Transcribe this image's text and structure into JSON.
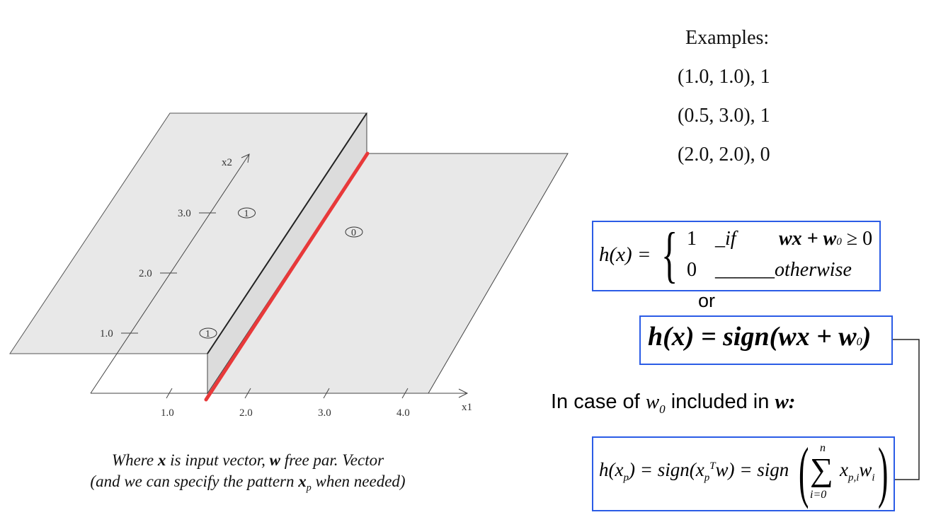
{
  "examples": {
    "title": "Examples:",
    "rows": [
      "(1.0, 1.0),  1",
      "(0.5, 3.0),  1",
      "(2.0, 2.0),  0"
    ]
  },
  "axes": {
    "x1_label": "x1",
    "x2_label": "x2",
    "x1_ticks": [
      "1.0",
      "2.0",
      "3.0",
      "4.0"
    ],
    "x2_ticks": [
      "1.0",
      "2.0",
      "3.0"
    ]
  },
  "points": [
    {
      "x1": 1.0,
      "x2": 1.0,
      "label": "1"
    },
    {
      "x1": 0.5,
      "x2": 3.0,
      "label": "1"
    },
    {
      "x1": 2.0,
      "x2": 2.0,
      "label": "0"
    }
  ],
  "formula1": {
    "lhs": "h(x) =",
    "case1_value": "1",
    "case1_cond_prefix": "_if",
    "case1_cond": "wx + w",
    "case1_sub": "0",
    "case1_tail": " ≥ 0",
    "case2_value": "0",
    "case2_cond": "______otherwise"
  },
  "or_text": "or",
  "formula2": {
    "lhs": "h(x) = sign(wx + w",
    "sub": "0",
    "rhs": ")"
  },
  "in_case": {
    "prefix": "In case of ",
    "var": "w",
    "sub": "0",
    "middle": " included in ",
    "bold_var": "w:"
  },
  "formula3": {
    "lhs": "h(x",
    "lhs_sub": "p",
    "mid": ") = sign(x",
    "mid_sub": "p",
    "mid_sup": "T",
    "mid_tail": "w) = sign",
    "sum_top": "n",
    "sum_bottom": "i=0",
    "term": "x",
    "term_sub": "p,i",
    "term2": "w",
    "term2_sub": "i"
  },
  "caption": {
    "line1_a": "Where ",
    "line1_x": "x",
    "line1_b": " is input vector, ",
    "line1_w": "w",
    "line1_c": " free par. Vector",
    "line2_a": "(and we can specify the pattern ",
    "line2_x": "x",
    "line2_sub": "p",
    "line2_b": "  when needed)"
  },
  "colors": {
    "boundary": "#e8393a",
    "box_border": "#2b5ce6",
    "plane_fill": "#e8e8e8"
  }
}
